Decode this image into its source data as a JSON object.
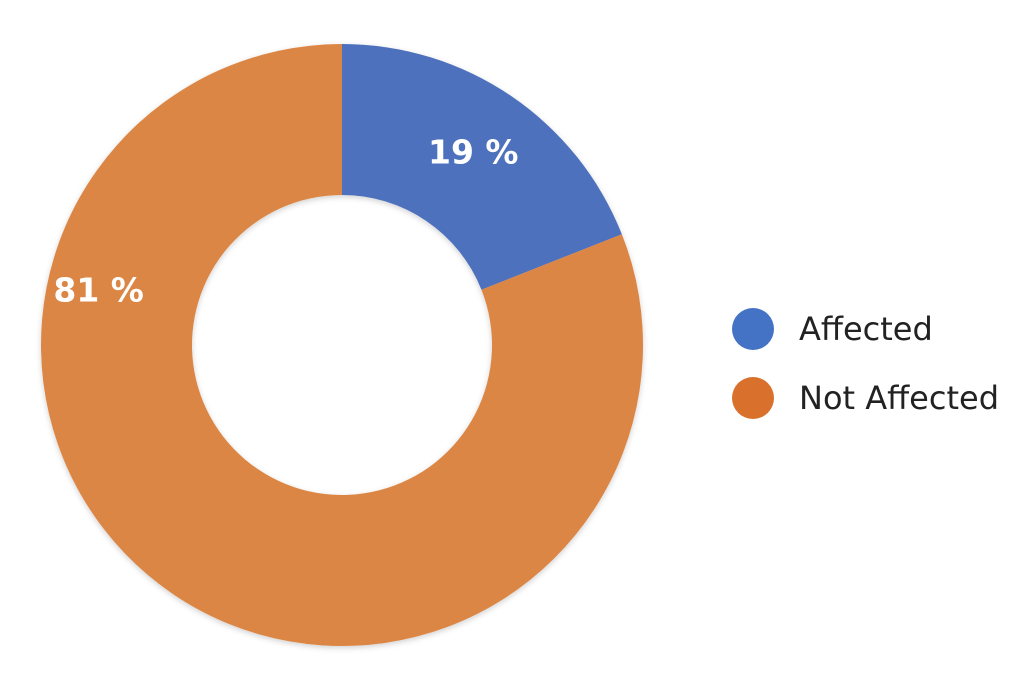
{
  "chart_data": {
    "type": "pie",
    "variant": "donut",
    "title": "",
    "categories": [
      "Affected",
      "Not Affected"
    ],
    "values": [
      19,
      81
    ],
    "unit": "%",
    "data_labels": [
      "19 %",
      "81 %"
    ],
    "colors": [
      "#4e71bd",
      "#dc8645"
    ],
    "legend": {
      "placement": "right",
      "entries": [
        {
          "label": "Affected",
          "color": "#4472c4"
        },
        {
          "label": "Not Affected",
          "color": "#d9712c"
        }
      ]
    }
  }
}
